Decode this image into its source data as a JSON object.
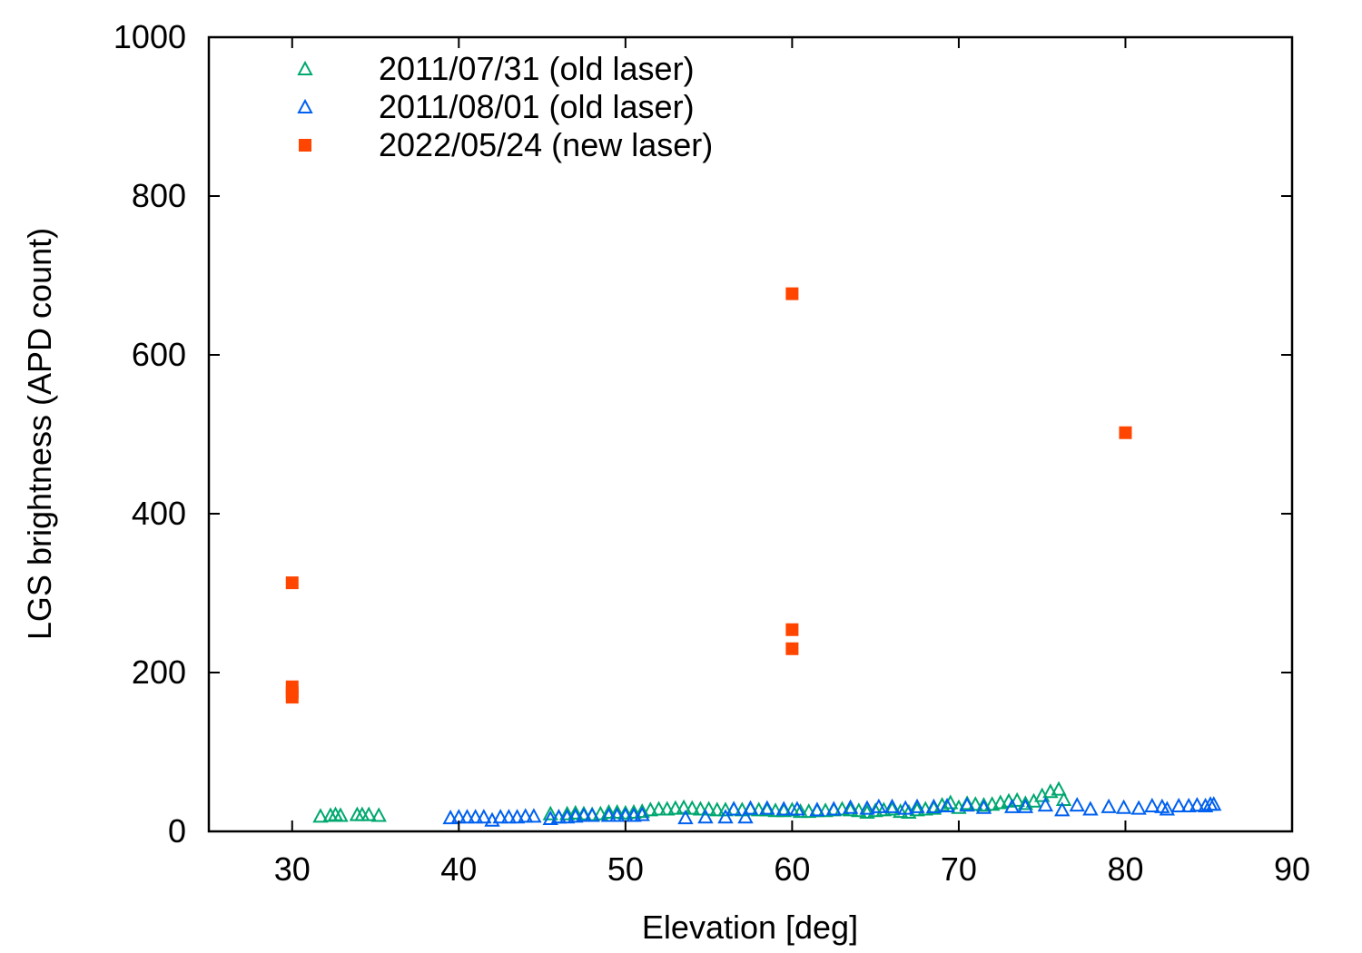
{
  "chart_data": {
    "type": "scatter",
    "title": "",
    "xlabel": "Elevation [deg]",
    "ylabel": "LGS brightness (APD count)",
    "xlim": [
      25,
      90
    ],
    "ylim": [
      0,
      1000
    ],
    "xticks": [
      30,
      40,
      50,
      60,
      70,
      80,
      90
    ],
    "yticks": [
      0,
      200,
      400,
      600,
      800,
      1000
    ],
    "grid": false,
    "legend_position": "top-left",
    "series": [
      {
        "name": "2011/07/31 (old laser)",
        "marker": "open-triangle",
        "color": "#00a870",
        "points": [
          [
            31.7,
            19
          ],
          [
            32.3,
            20
          ],
          [
            32.6,
            21
          ],
          [
            32.9,
            20
          ],
          [
            33.9,
            21
          ],
          [
            34.2,
            21
          ],
          [
            34.6,
            21
          ],
          [
            35.2,
            20
          ],
          [
            45.5,
            22
          ],
          [
            46,
            18
          ],
          [
            46.5,
            22
          ],
          [
            47,
            23
          ],
          [
            47.5,
            22
          ],
          [
            48,
            21
          ],
          [
            48.5,
            22
          ],
          [
            49,
            24
          ],
          [
            49.5,
            24
          ],
          [
            50,
            23
          ],
          [
            50.5,
            24
          ],
          [
            51,
            25
          ],
          [
            51.5,
            27
          ],
          [
            52,
            28
          ],
          [
            52.5,
            28
          ],
          [
            53,
            29
          ],
          [
            53.5,
            30
          ],
          [
            54,
            29
          ],
          [
            54.5,
            28
          ],
          [
            55,
            28
          ],
          [
            55.5,
            27
          ],
          [
            56,
            27
          ],
          [
            56.5,
            28
          ],
          [
            57,
            27
          ],
          [
            57.5,
            28
          ],
          [
            58,
            27
          ],
          [
            58.5,
            27
          ],
          [
            59,
            26
          ],
          [
            59.5,
            26
          ],
          [
            60,
            27
          ],
          [
            60.5,
            25
          ],
          [
            61,
            25
          ],
          [
            61.5,
            26
          ],
          [
            62,
            26
          ],
          [
            62.5,
            27
          ],
          [
            63,
            28
          ],
          [
            63.5,
            27
          ],
          [
            64,
            26
          ],
          [
            64.5,
            24
          ],
          [
            65,
            26
          ],
          [
            65.5,
            27
          ],
          [
            66,
            28
          ],
          [
            66.5,
            25
          ],
          [
            67,
            24
          ],
          [
            67.5,
            27
          ],
          [
            68,
            28
          ],
          [
            68.5,
            29
          ],
          [
            69,
            33
          ],
          [
            69.5,
            36
          ],
          [
            70,
            30
          ],
          [
            70.5,
            35
          ],
          [
            71,
            34
          ],
          [
            71.5,
            33
          ],
          [
            72,
            34
          ],
          [
            72.5,
            36
          ],
          [
            73,
            38
          ],
          [
            73.5,
            39
          ],
          [
            74,
            35
          ],
          [
            74.5,
            38
          ],
          [
            75,
            45
          ],
          [
            75.5,
            50
          ],
          [
            76,
            53
          ],
          [
            76.3,
            40
          ]
        ]
      },
      {
        "name": "2011/08/01 (old laser)",
        "marker": "open-triangle",
        "color": "#0060f0",
        "points": [
          [
            39.5,
            17
          ],
          [
            40,
            18
          ],
          [
            40.5,
            18
          ],
          [
            41,
            18
          ],
          [
            41.5,
            18
          ],
          [
            42,
            14
          ],
          [
            42.5,
            18
          ],
          [
            43,
            18
          ],
          [
            43.5,
            18
          ],
          [
            44,
            19
          ],
          [
            44.5,
            19
          ],
          [
            45.5,
            16
          ],
          [
            46,
            18
          ],
          [
            46.5,
            18
          ],
          [
            47,
            19
          ],
          [
            47.5,
            20
          ],
          [
            48,
            20
          ],
          [
            49,
            20
          ],
          [
            49.5,
            20
          ],
          [
            50,
            20
          ],
          [
            50.5,
            20
          ],
          [
            51,
            21
          ],
          [
            53.6,
            17
          ],
          [
            54.8,
            18
          ],
          [
            56,
            18
          ],
          [
            57.2,
            18
          ],
          [
            56.5,
            28
          ],
          [
            57.5,
            29
          ],
          [
            58.5,
            29
          ],
          [
            59.5,
            28
          ],
          [
            60.3,
            28
          ],
          [
            61.5,
            27
          ],
          [
            62.5,
            28
          ],
          [
            63.5,
            30
          ],
          [
            64.5,
            29
          ],
          [
            65.2,
            31
          ],
          [
            66,
            31
          ],
          [
            66.8,
            29
          ],
          [
            67.5,
            31
          ],
          [
            68.5,
            31
          ],
          [
            69.3,
            32
          ],
          [
            70.5,
            33
          ],
          [
            71.5,
            30
          ],
          [
            73.2,
            31
          ],
          [
            74,
            31
          ],
          [
            75.2,
            33
          ],
          [
            76.2,
            27
          ],
          [
            77.1,
            33
          ],
          [
            77.9,
            28
          ],
          [
            79,
            31
          ],
          [
            79.9,
            30
          ],
          [
            80.8,
            29
          ],
          [
            81.6,
            32
          ],
          [
            82.2,
            31
          ],
          [
            82.5,
            28
          ],
          [
            83.2,
            32
          ],
          [
            83.8,
            32
          ],
          [
            84.3,
            33
          ],
          [
            84.8,
            32
          ],
          [
            85.1,
            34
          ],
          [
            85.3,
            34
          ]
        ]
      },
      {
        "name": "2022/05/24 (new laser)",
        "marker": "filled-square",
        "color": "#ff4500",
        "points": [
          [
            30,
            313
          ],
          [
            30,
            182
          ],
          [
            30,
            175
          ],
          [
            30,
            169
          ],
          [
            60,
            677
          ],
          [
            60,
            254
          ],
          [
            60,
            230
          ],
          [
            80,
            502
          ]
        ]
      }
    ]
  }
}
